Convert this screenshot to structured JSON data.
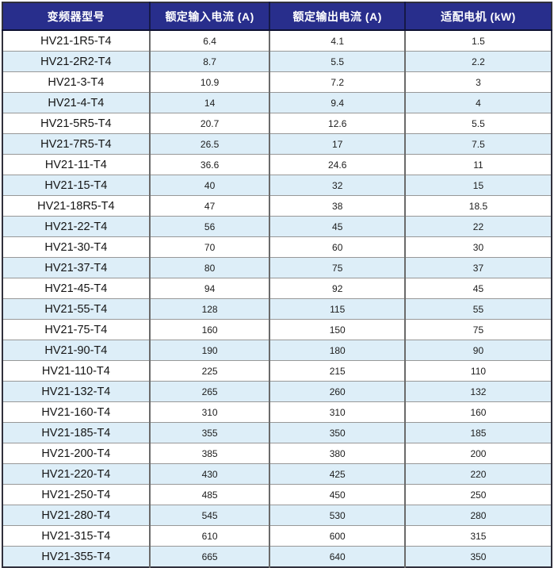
{
  "table": {
    "columns": [
      {
        "label": "变频器型号"
      },
      {
        "label": "额定输入电流 (A)"
      },
      {
        "label": "额定输出电流 (A)"
      },
      {
        "label": "适配电机 (kW)"
      }
    ],
    "rows": [
      {
        "model": "HV21-1R5-T4",
        "input_current": "6.4",
        "output_current": "4.1",
        "motor_kw": "1.5"
      },
      {
        "model": "HV21-2R2-T4",
        "input_current": "8.7",
        "output_current": "5.5",
        "motor_kw": "2.2"
      },
      {
        "model": "HV21-3-T4",
        "input_current": "10.9",
        "output_current": "7.2",
        "motor_kw": "3"
      },
      {
        "model": "HV21-4-T4",
        "input_current": "14",
        "output_current": "9.4",
        "motor_kw": "4"
      },
      {
        "model": "HV21-5R5-T4",
        "input_current": "20.7",
        "output_current": "12.6",
        "motor_kw": "5.5"
      },
      {
        "model": "HV21-7R5-T4",
        "input_current": "26.5",
        "output_current": "17",
        "motor_kw": "7.5"
      },
      {
        "model": "HV21-11-T4",
        "input_current": "36.6",
        "output_current": "24.6",
        "motor_kw": "11"
      },
      {
        "model": "HV21-15-T4",
        "input_current": "40",
        "output_current": "32",
        "motor_kw": "15"
      },
      {
        "model": "HV21-18R5-T4",
        "input_current": "47",
        "output_current": "38",
        "motor_kw": "18.5"
      },
      {
        "model": "HV21-22-T4",
        "input_current": "56",
        "output_current": "45",
        "motor_kw": "22"
      },
      {
        "model": "HV21-30-T4",
        "input_current": "70",
        "output_current": "60",
        "motor_kw": "30"
      },
      {
        "model": "HV21-37-T4",
        "input_current": "80",
        "output_current": "75",
        "motor_kw": "37"
      },
      {
        "model": "HV21-45-T4",
        "input_current": "94",
        "output_current": "92",
        "motor_kw": "45"
      },
      {
        "model": "HV21-55-T4",
        "input_current": "128",
        "output_current": "115",
        "motor_kw": "55"
      },
      {
        "model": "HV21-75-T4",
        "input_current": "160",
        "output_current": "150",
        "motor_kw": "75"
      },
      {
        "model": "HV21-90-T4",
        "input_current": "190",
        "output_current": "180",
        "motor_kw": "90"
      },
      {
        "model": "HV21-110-T4",
        "input_current": "225",
        "output_current": "215",
        "motor_kw": "110"
      },
      {
        "model": "HV21-132-T4",
        "input_current": "265",
        "output_current": "260",
        "motor_kw": "132"
      },
      {
        "model": "HV21-160-T4",
        "input_current": "310",
        "output_current": "310",
        "motor_kw": "160"
      },
      {
        "model": "HV21-185-T4",
        "input_current": "355",
        "output_current": "350",
        "motor_kw": "185"
      },
      {
        "model": "HV21-200-T4",
        "input_current": "385",
        "output_current": "380",
        "motor_kw": "200"
      },
      {
        "model": "HV21-220-T4",
        "input_current": "430",
        "output_current": "425",
        "motor_kw": "220"
      },
      {
        "model": "HV21-250-T4",
        "input_current": "485",
        "output_current": "450",
        "motor_kw": "250"
      },
      {
        "model": "HV21-280-T4",
        "input_current": "545",
        "output_current": "530",
        "motor_kw": "280"
      },
      {
        "model": "HV21-315-T4",
        "input_current": "610",
        "output_current": "600",
        "motor_kw": "315"
      },
      {
        "model": "HV21-355-T4",
        "input_current": "665",
        "output_current": "640",
        "motor_kw": "350"
      }
    ]
  },
  "colors": {
    "header_bg": "#282e8c",
    "header_text": "#ffffff",
    "stripe_row_bg": "#ddeef8",
    "plain_row_bg": "#ffffff",
    "outer_border": "#30303c"
  }
}
